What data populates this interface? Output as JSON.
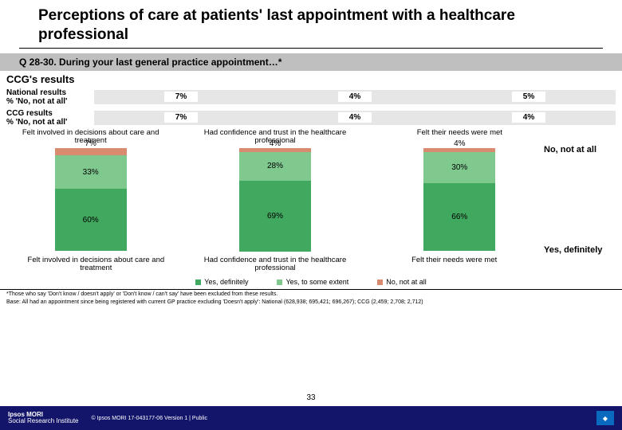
{
  "title": "Perceptions of care at patients' last appointment with a healthcare professional",
  "question_bar": "Q 28-30.  During your last general practice appointment…*",
  "ccg_heading": "CCG's results",
  "nat_label": "National results\n% 'No, not at all'",
  "ccg_label": "CCG results\n% 'No, not at all'",
  "nat_values": [
    "7%",
    "4%",
    "5%"
  ],
  "ccg_values": [
    "7%",
    "4%",
    "4%"
  ],
  "chart_titles": [
    "Felt involved in decisions about care and treatment",
    "Had confidence and trust in the healthcare professional",
    "Felt their needs were met"
  ],
  "side_no": "No, not at all",
  "side_yes": "Yes, definitely",
  "charts": [
    {
      "segs": [
        {
          "v": 7,
          "l": "7%",
          "c": "#d98b6f",
          "out": true
        },
        {
          "v": 33,
          "l": "33%",
          "c": "#7fc98f"
        },
        {
          "v": 60,
          "l": "60%",
          "c": "#41a85f"
        }
      ]
    },
    {
      "segs": [
        {
          "v": 4,
          "l": "4%",
          "c": "#d98b6f",
          "out": true
        },
        {
          "v": 28,
          "l": "28%",
          "c": "#7fc98f"
        },
        {
          "v": 69,
          "l": "69%",
          "c": "#41a85f"
        }
      ]
    },
    {
      "segs": [
        {
          "v": 4,
          "l": "4%",
          "c": "#d98b6f",
          "out": true
        },
        {
          "v": 30,
          "l": "30%",
          "c": "#7fc98f"
        },
        {
          "v": 66,
          "l": "66%",
          "c": "#41a85f"
        }
      ]
    }
  ],
  "axis_labels": [
    "Felt involved in decisions about care and treatment",
    "Had confidence and trust in the healthcare professional",
    "Felt their needs were met"
  ],
  "legend": [
    {
      "l": "Yes, definitely",
      "c": "#41a85f"
    },
    {
      "l": "Yes, to some extent",
      "c": "#7fc98f"
    },
    {
      "l": "No, not at all",
      "c": "#d98b6f"
    }
  ],
  "footnote1": "*Those who say 'Don't know / doesn't apply' or 'Don't know / can't say' have been excluded from these results.",
  "footnote2": "Base: All had an appointment since being registered with current GP practice excluding 'Doesn't apply': National (628,938; 695,421; 696,267); CCG (2,459; 2,708; 2,712)",
  "logo_line1": "Ipsos MORI",
  "logo_line2": "Social Research Institute",
  "copyright": "© Ipsos MORI    17-043177-06 Version 1 | Public",
  "page_num": "33",
  "colors": {
    "grey_bar": "#bfbfbf",
    "footer": "#13156b"
  }
}
